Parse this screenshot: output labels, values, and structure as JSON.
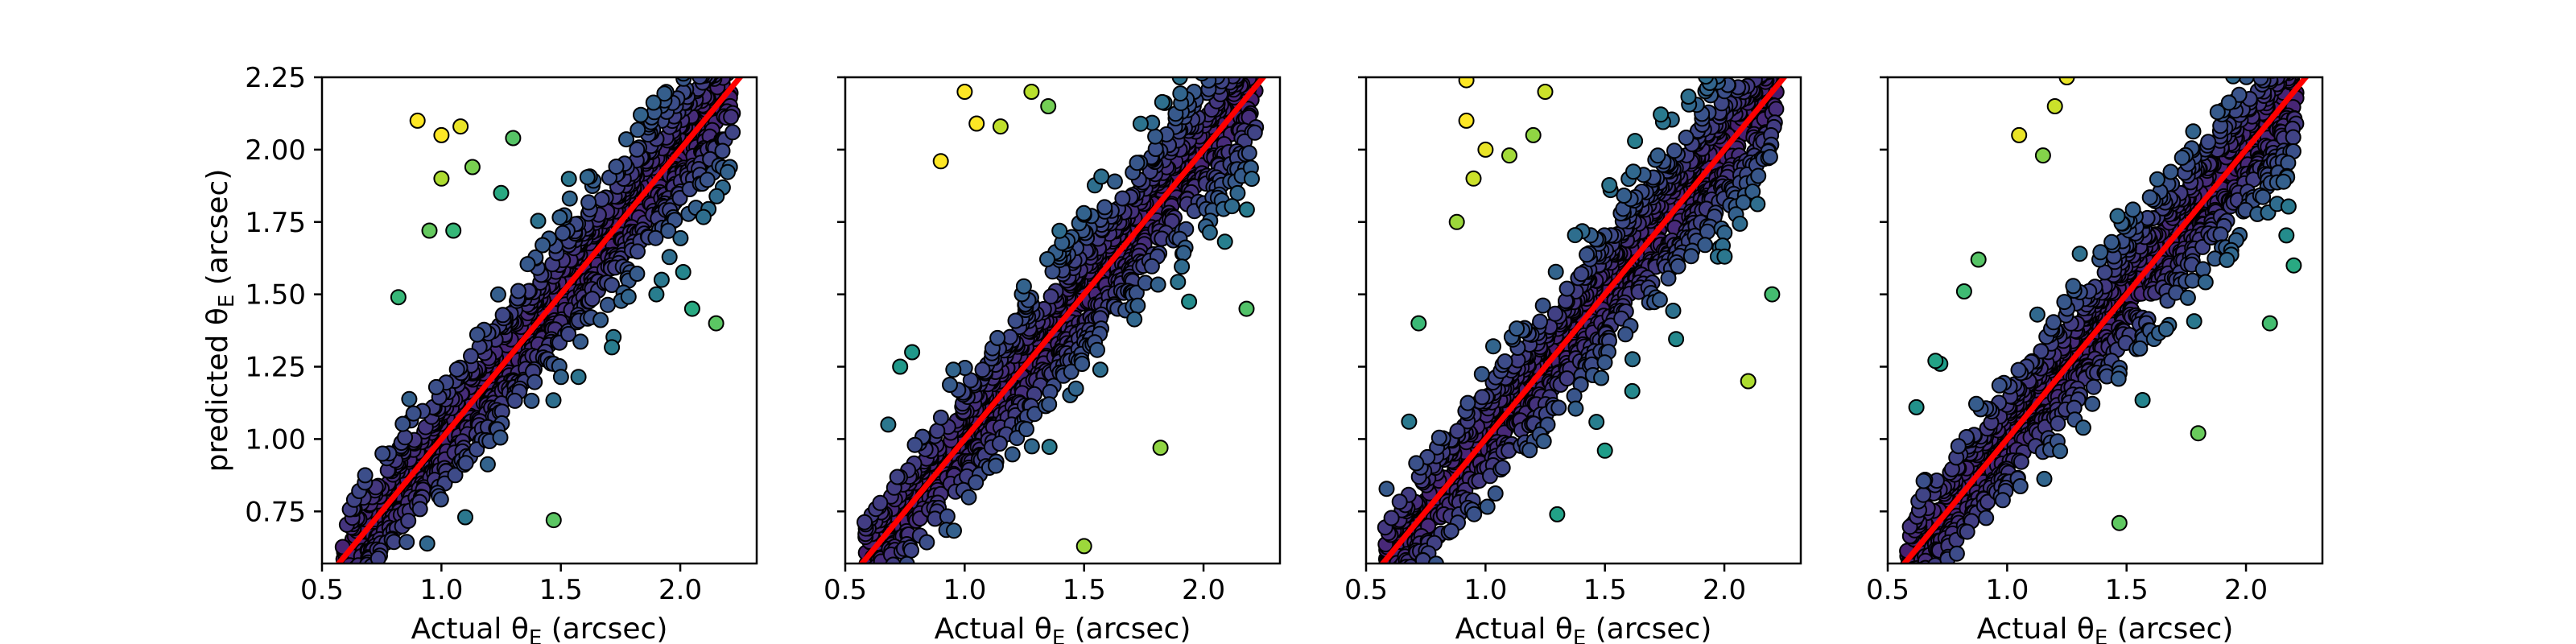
{
  "chart_data": {
    "type": "scatter",
    "layout": "1x4 panels, shared y-axis",
    "colormap": "viridis (point color encodes residual; purple = small, yellow = large)",
    "reference_line": {
      "label": "y = x",
      "color": "#ff0000"
    },
    "marker": {
      "edgecolor": "#000000"
    },
    "xlim": [
      0.5,
      2.32
    ],
    "ylim": [
      0.57,
      2.25
    ],
    "xticks": [
      "0.5",
      "1.0",
      "1.5",
      "2.0"
    ],
    "yticks": [
      "0.75",
      "1.00",
      "1.25",
      "1.50",
      "1.75",
      "2.00",
      "2.25"
    ],
    "ylabel": "predicted θ",
    "ylabel_sub": "E",
    "ylabel_tail": " (arcsec)",
    "panels": [
      {
        "xlabel": "Actual θ",
        "xlabel_sub": "E",
        "xlabel_tail": " (arcsec)",
        "show_yticklabels": true,
        "outliers": [
          [
            0.82,
            1.49
          ],
          [
            1.0,
            1.9
          ],
          [
            1.05,
            1.72
          ],
          [
            0.95,
            1.72
          ],
          [
            1.25,
            1.85
          ],
          [
            1.13,
            1.94
          ],
          [
            1.3,
            2.04
          ],
          [
            1.9,
            1.5
          ],
          [
            1.47,
            0.72
          ],
          [
            2.15,
            1.4
          ],
          [
            2.05,
            1.45
          ],
          [
            1.1,
            0.73
          ],
          [
            0.9,
            2.1
          ],
          [
            1.0,
            2.05
          ],
          [
            1.08,
            2.08
          ]
        ]
      },
      {
        "xlabel": "Actual θ",
        "xlabel_sub": "E",
        "xlabel_tail": " (arcsec)",
        "show_yticklabels": false,
        "outliers": [
          [
            0.9,
            1.96
          ],
          [
            1.15,
            2.08
          ],
          [
            1.05,
            2.09
          ],
          [
            1.28,
            2.2
          ],
          [
            1.5,
            0.63
          ],
          [
            1.82,
            0.97
          ],
          [
            2.18,
            1.45
          ],
          [
            0.68,
            1.05
          ],
          [
            0.78,
            1.3
          ],
          [
            0.73,
            1.25
          ],
          [
            1.0,
            2.2
          ],
          [
            1.35,
            2.15
          ]
        ]
      },
      {
        "xlabel": "Actual θ",
        "xlabel_sub": "E",
        "xlabel_tail": " (arcsec)",
        "show_yticklabels": false,
        "outliers": [
          [
            0.92,
            2.24
          ],
          [
            0.92,
            2.1
          ],
          [
            0.88,
            1.75
          ],
          [
            0.72,
            1.4
          ],
          [
            0.95,
            1.9
          ],
          [
            1.0,
            2.0
          ],
          [
            1.1,
            1.98
          ],
          [
            1.2,
            2.05
          ],
          [
            1.3,
            0.74
          ],
          [
            1.5,
            0.96
          ],
          [
            2.2,
            1.5
          ],
          [
            2.1,
            1.2
          ],
          [
            0.68,
            1.06
          ],
          [
            1.25,
            2.2
          ]
        ]
      },
      {
        "xlabel": "Actual θ",
        "xlabel_sub": "E",
        "xlabel_tail": " (arcsec)",
        "show_yticklabels": false,
        "outliers": [
          [
            0.82,
            1.51
          ],
          [
            0.88,
            1.62
          ],
          [
            0.62,
            1.11
          ],
          [
            0.7,
            1.27
          ],
          [
            0.72,
            1.26
          ],
          [
            1.15,
            1.98
          ],
          [
            1.2,
            2.15
          ],
          [
            1.05,
            2.05
          ],
          [
            1.47,
            0.71
          ],
          [
            1.8,
            1.02
          ],
          [
            2.2,
            1.6
          ],
          [
            2.1,
            1.4
          ],
          [
            1.25,
            2.25
          ]
        ]
      }
    ]
  }
}
